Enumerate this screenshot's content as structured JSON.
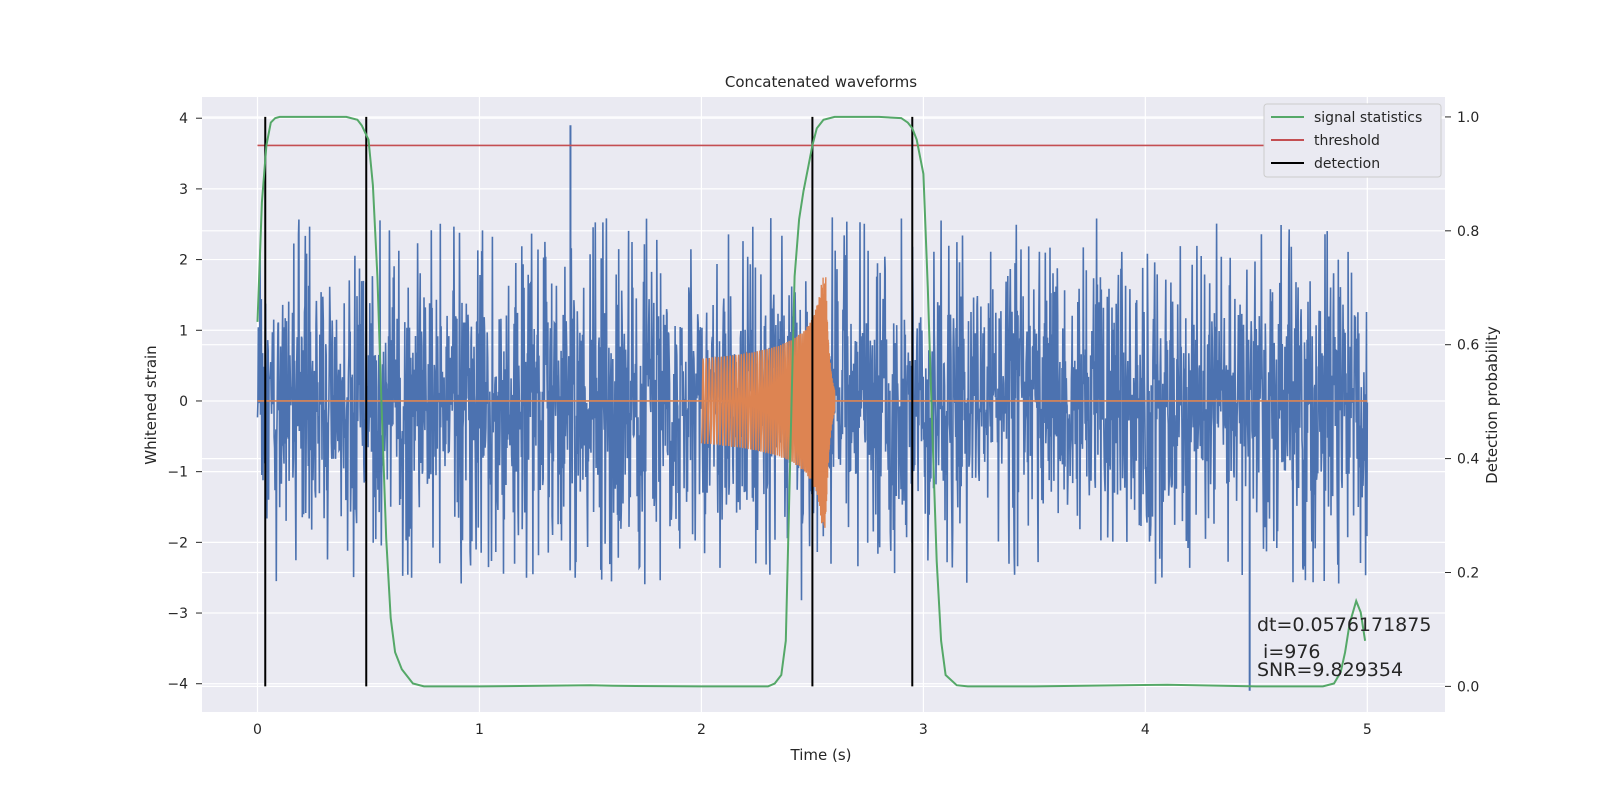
{
  "chart_data": {
    "type": "line",
    "title": "Concatenated waveforms",
    "xlabel": "Time (s)",
    "ylabel": "Whitened strain",
    "y2label": "Detection probability",
    "xlim": [
      -0.25,
      5.35
    ],
    "ylim": [
      -4.4,
      4.3
    ],
    "y2lim": [
      -0.045,
      1.035
    ],
    "x_ticks": [
      0,
      1,
      2,
      3,
      4,
      5
    ],
    "y_ticks": [
      -4,
      -3,
      -2,
      -1,
      0,
      1,
      2,
      3,
      4
    ],
    "y2_ticks": [
      0.0,
      0.2,
      0.4,
      0.6,
      0.8,
      1.0
    ],
    "x_tick_labels": [
      "0",
      "1",
      "2",
      "3",
      "4",
      "5"
    ],
    "y_tick_labels": [
      "−4",
      "−3",
      "−2",
      "−1",
      "0",
      "1",
      "2",
      "3",
      "4"
    ],
    "y2_tick_labels": [
      "0.0",
      "0.2",
      "0.4",
      "0.6",
      "0.8",
      "1.0"
    ],
    "grid": true,
    "legend_position": "top-right",
    "legend": [
      {
        "label": "signal statistics",
        "color": "#55a868"
      },
      {
        "label": "threshold",
        "color": "#c44e52"
      },
      {
        "label": "detection",
        "color": "#000000"
      }
    ],
    "colors": {
      "background": "#eaeaf2",
      "grid": "#ffffff",
      "strain": "#4c72b0",
      "template": "#dd8452"
    },
    "series": [
      {
        "name": "signal statistics",
        "axis": "right",
        "x": [
          0.0,
          0.02,
          0.04,
          0.06,
          0.08,
          0.1,
          0.15,
          0.2,
          0.3,
          0.4,
          0.45,
          0.47,
          0.5,
          0.52,
          0.54,
          0.56,
          0.58,
          0.6,
          0.62,
          0.65,
          0.7,
          0.75,
          0.8,
          1.0,
          1.5,
          1.6,
          2.0,
          2.3,
          2.33,
          2.36,
          2.38,
          2.4,
          2.42,
          2.44,
          2.46,
          2.48,
          2.5,
          2.52,
          2.55,
          2.6,
          2.7,
          2.8,
          2.9,
          2.93,
          2.95,
          2.97,
          3.0,
          3.02,
          3.04,
          3.06,
          3.08,
          3.1,
          3.15,
          3.2,
          3.5,
          4.1,
          4.5,
          4.8,
          4.85,
          4.88,
          4.9,
          4.92,
          4.95,
          4.97,
          4.99
        ],
        "values": [
          0.64,
          0.85,
          0.95,
          0.99,
          0.998,
          1.0,
          1.0,
          1.0,
          1.0,
          1.0,
          0.995,
          0.985,
          0.96,
          0.88,
          0.72,
          0.48,
          0.26,
          0.12,
          0.06,
          0.03,
          0.005,
          0.0,
          0.0,
          0.0,
          0.002,
          0.001,
          0.0,
          0.0,
          0.005,
          0.02,
          0.08,
          0.4,
          0.72,
          0.82,
          0.87,
          0.91,
          0.95,
          0.98,
          0.995,
          1.0,
          1.0,
          1.0,
          0.998,
          0.99,
          0.98,
          0.96,
          0.9,
          0.7,
          0.45,
          0.22,
          0.08,
          0.02,
          0.002,
          0.0,
          0.0,
          0.003,
          0.0,
          0.0,
          0.005,
          0.025,
          0.06,
          0.11,
          0.15,
          0.13,
          0.08
        ]
      },
      {
        "name": "threshold",
        "axis": "right",
        "x": [
          0.0,
          5.1
        ],
        "values": [
          0.95,
          0.95
        ]
      }
    ],
    "detection_times": [
      0.035,
      0.49,
      2.5,
      2.95
    ],
    "strain_noise": {
      "x_range": [
        0.0,
        5.0
      ],
      "spike_up_range": [
        1.4,
        2.7
      ],
      "spike_down_range": [
        -1.6,
        -3.1
      ],
      "notable_extremes": [
        {
          "x": 1.41,
          "y": 3.9
        },
        {
          "x": 4.47,
          "y": -4.1
        }
      ]
    },
    "template_chirp": {
      "x_range": [
        2.0,
        2.6
      ],
      "merger_time": 2.56,
      "peak_amplitude": 1.8
    },
    "annotation": {
      "dt": "dt=0.0576171875",
      "i": " i=976",
      "snr": "SNR=9.829354"
    }
  }
}
